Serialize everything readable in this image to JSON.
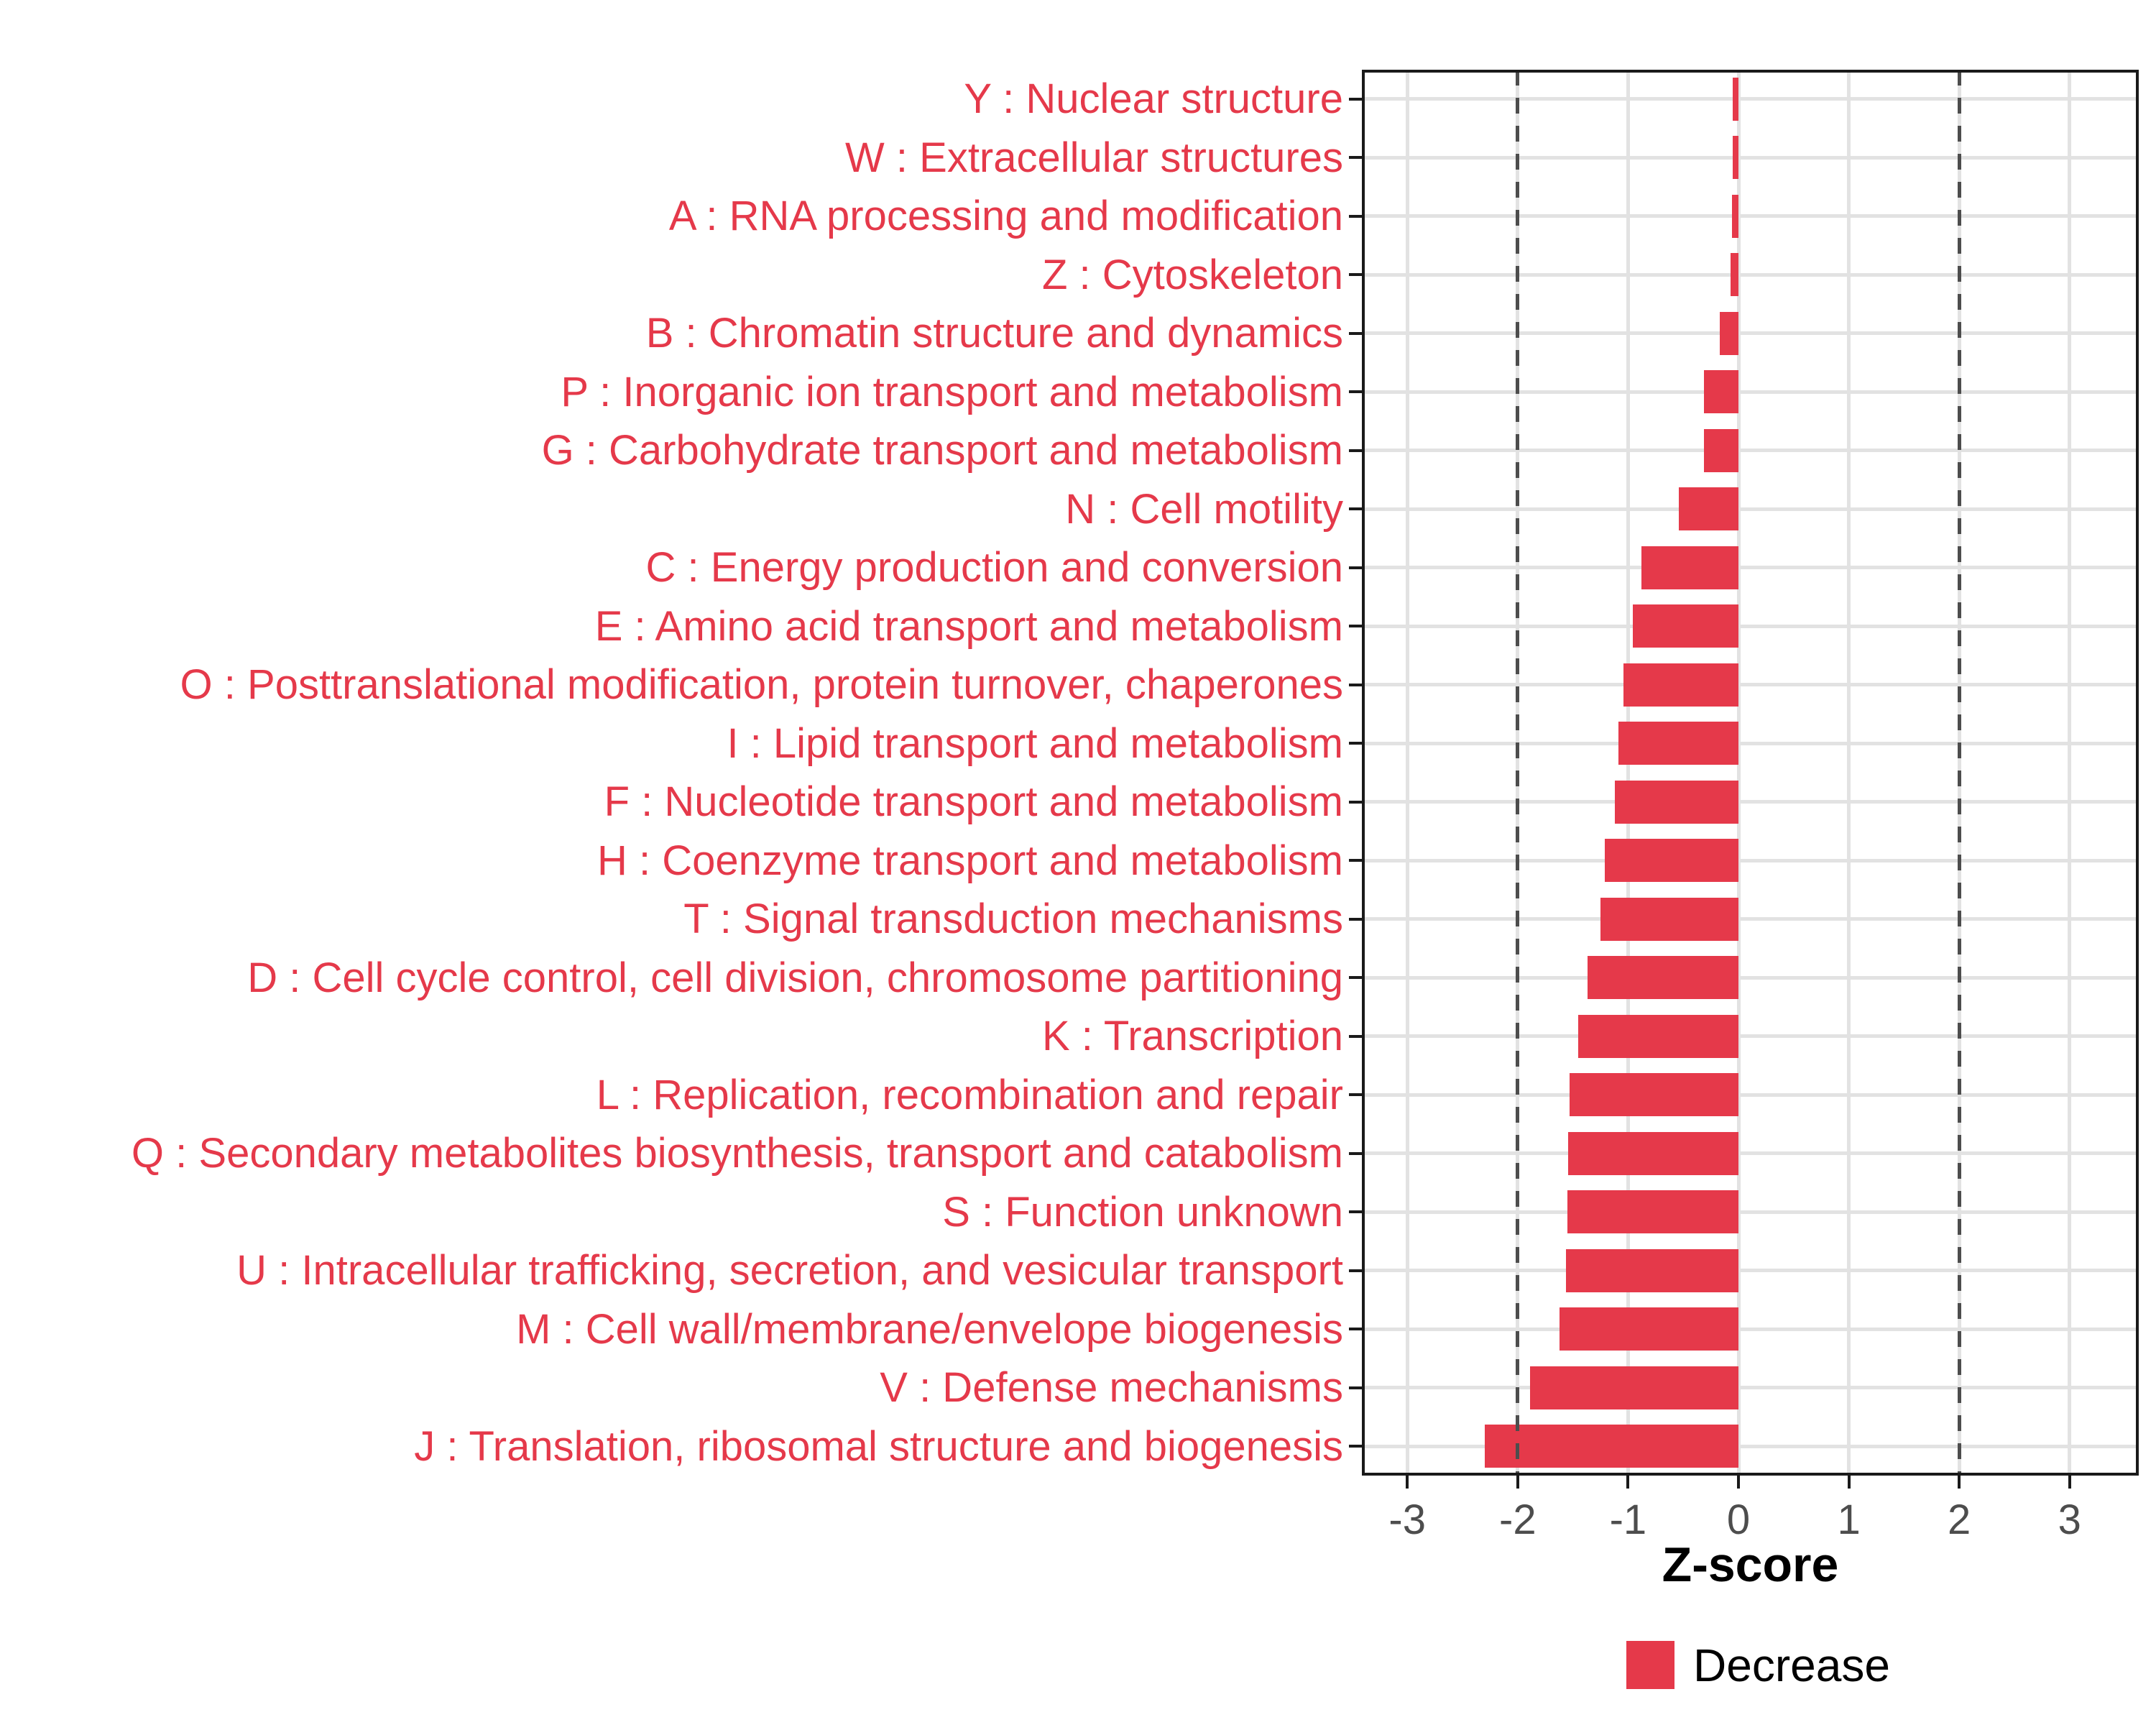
{
  "chart_data": {
    "type": "bar",
    "orientation": "horizontal",
    "title": "",
    "xlabel": "Z-score",
    "ylabel": "",
    "xlim": [
      -3.45,
      3.65
    ],
    "x_ticks": [
      -3,
      -2,
      -1,
      0,
      1,
      2,
      3
    ],
    "x_tick_labels": [
      "-3",
      "-2",
      "-1",
      "0",
      "1",
      "2",
      "3"
    ],
    "reference_lines": [
      -2,
      2
    ],
    "grid": true,
    "legend_position": "bottom",
    "series_name": "Decrease",
    "categories": [
      "Y : Nuclear structure",
      "W : Extracellular structures",
      "A : RNA processing and modification",
      "Z : Cytoskeleton",
      "B : Chromatin structure and dynamics",
      "P : Inorganic ion transport and metabolism",
      "G : Carbohydrate transport and metabolism",
      "N : Cell motility",
      "C : Energy production and conversion",
      "E : Amino acid transport and metabolism",
      "O : Posttranslational modification, protein turnover, chaperones",
      "I : Lipid transport and metabolism",
      "F : Nucleotide transport and metabolism",
      "H : Coenzyme transport and metabolism",
      "T : Signal transduction mechanisms",
      "D : Cell cycle control, cell division, chromosome partitioning",
      "K : Transcription",
      "L : Replication, recombination and repair",
      "Q : Secondary metabolites biosynthesis, transport and catabolism",
      "S : Function unknown",
      "U : Intracellular trafficking, secretion, and vesicular transport",
      "M : Cell wall/membrane/envelope biogenesis",
      "V : Defense mechanisms",
      "J : Translation, ribosomal structure and biogenesis"
    ],
    "values": [
      -0.05,
      -0.05,
      -0.06,
      -0.07,
      -0.17,
      -0.31,
      -0.31,
      -0.54,
      -0.88,
      -0.96,
      -1.04,
      -1.09,
      -1.12,
      -1.21,
      -1.25,
      -1.37,
      -1.45,
      -1.53,
      -1.54,
      -1.55,
      -1.56,
      -1.62,
      -1.89,
      -2.3
    ]
  },
  "axis": {
    "title": "Z-score"
  },
  "legend": {
    "label": "Decrease"
  },
  "colors": {
    "bar": "#E5394A",
    "category_label": "#E5394A",
    "grid": "#E2E2E2",
    "dashed_line": "#4D4D4D",
    "axis_text": "#4D4D4D",
    "panel_border": "#1A1A1A",
    "tick_mark": "#1A1A1A",
    "axis_title": "#000000",
    "legend_text": "#000000",
    "background": "#FFFFFF"
  }
}
